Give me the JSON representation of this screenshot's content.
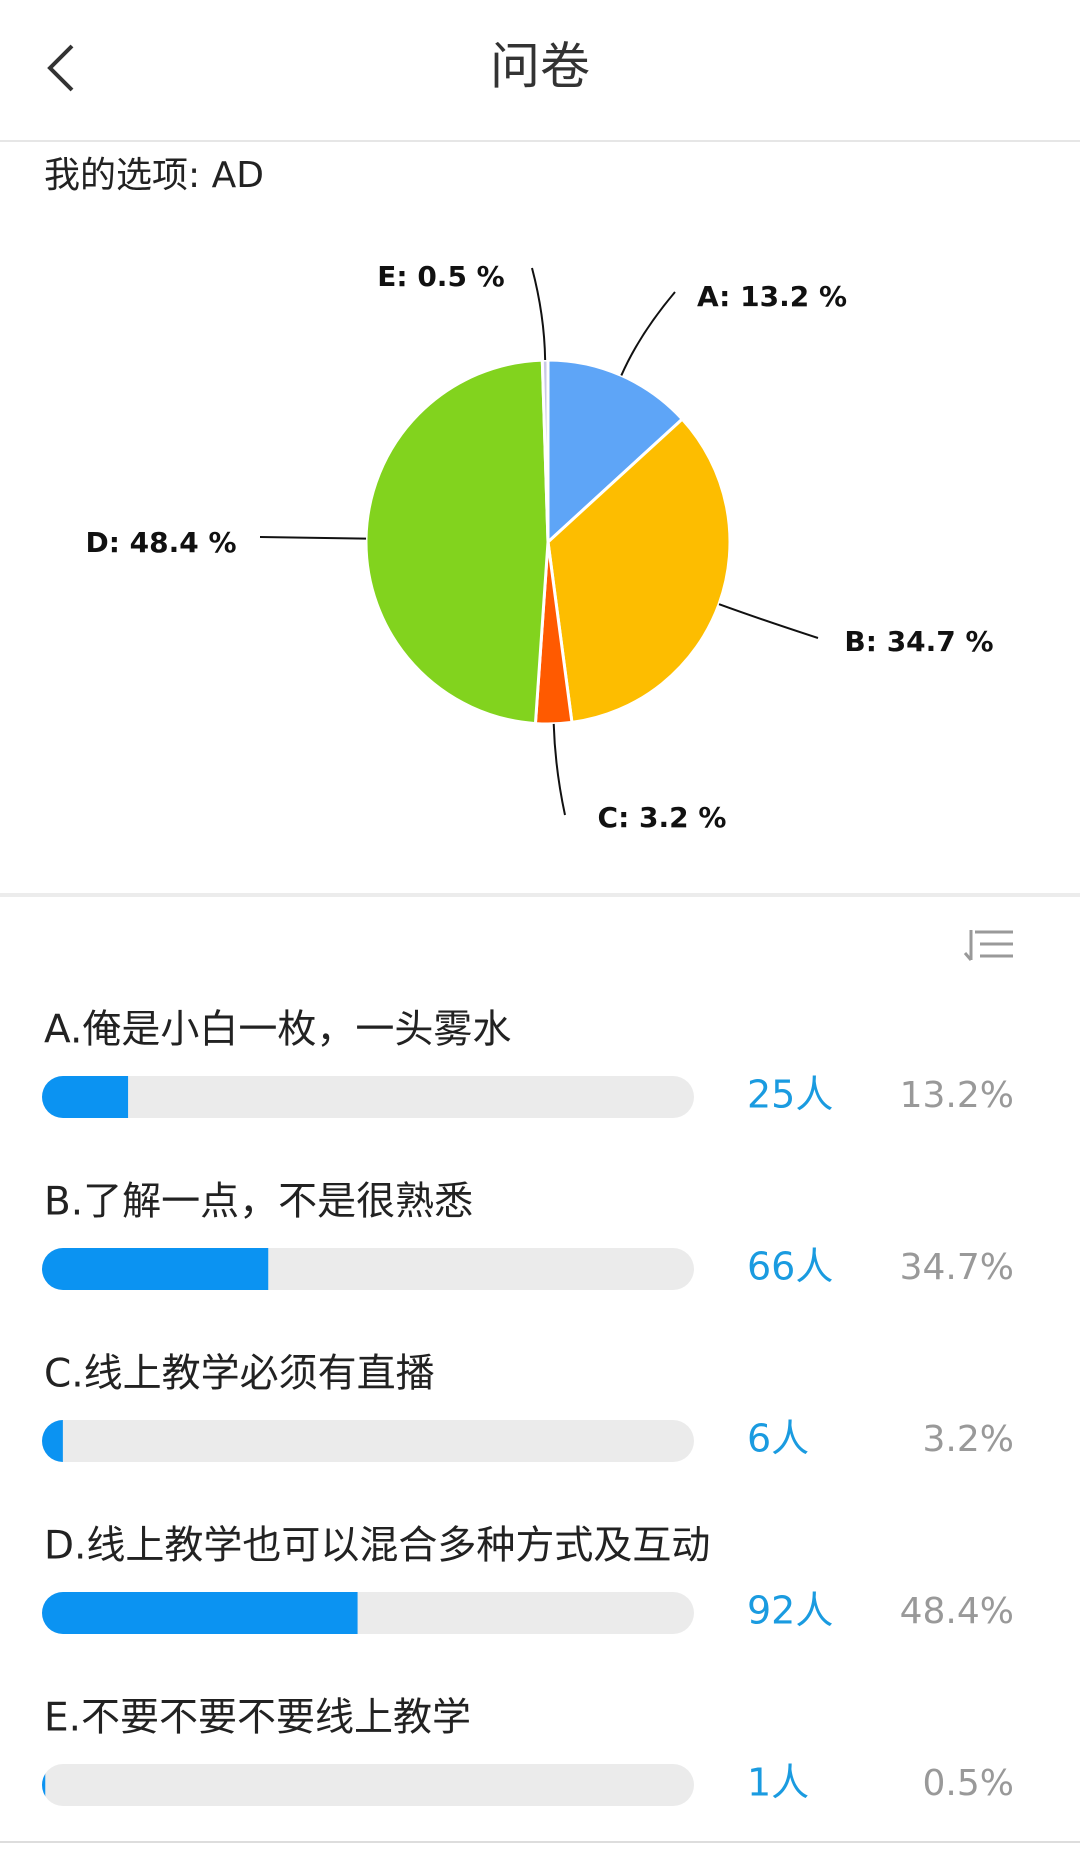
{
  "header": {
    "title": "问卷"
  },
  "my_choice": "我的选项: AD",
  "pie": {
    "type": "pie",
    "values": [
      13.2,
      34.7,
      3.2,
      48.4,
      0.5
    ],
    "value_labels": [
      "A: 13.2 %",
      "B: 34.7 %",
      "C: 3.2 %",
      "D: 48.4 %",
      "E: 0.5 %"
    ],
    "colors": [
      "#5ea5f7",
      "#fdbd00",
      "#ff5a00",
      "#82d31e",
      "#c9c9e6"
    ]
  },
  "options": [
    {
      "label": "A.俺是小白一枚，一头雾水",
      "count": "25人",
      "share": {
        "value": 13.2,
        "label": "13.2%"
      }
    },
    {
      "label": "B.了解一点，不是很熟悉",
      "count": "66人",
      "share": {
        "value": 34.7,
        "label": "34.7%"
      }
    },
    {
      "label": "C.线上教学必须有直播",
      "count": "6人",
      "share": {
        "value": 3.2,
        "label": "3.2%"
      }
    },
    {
      "label": "D.线上教学也可以混合多种方式及互动",
      "count": "92人",
      "share": {
        "value": 48.4,
        "label": "48.4%"
      }
    },
    {
      "label": "E.不要不要不要线上教学",
      "count": "1人",
      "share": {
        "value": 0.5,
        "label": "0.5%"
      }
    }
  ]
}
